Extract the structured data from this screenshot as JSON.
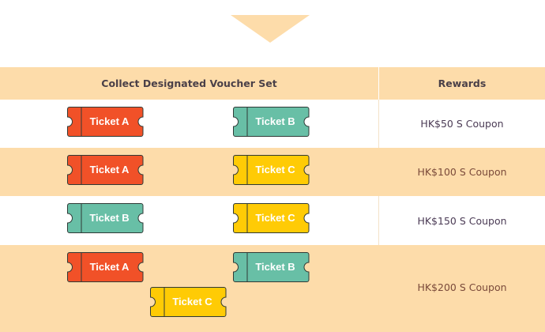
{
  "header": {
    "col_vouchers": "Collect Designated Voucher Set",
    "col_rewards": "Rewards"
  },
  "colors": {
    "ticket_a": "#F15128",
    "ticket_b": "#68BFA6",
    "ticket_c": "#FFCB05",
    "accent": "#FDDCAA"
  },
  "rows": [
    {
      "tickets": [
        "Ticket A",
        "Ticket B"
      ],
      "reward": "HK$50 S Coupon"
    },
    {
      "tickets": [
        "Ticket A",
        "Ticket C"
      ],
      "reward": "HK$100 S Coupon"
    },
    {
      "tickets": [
        "Ticket B",
        "Ticket C"
      ],
      "reward": "HK$150 S Coupon"
    },
    {
      "tickets": [
        "Ticket A",
        "Ticket B",
        "Ticket C"
      ],
      "reward": "HK$200 S Coupon"
    }
  ]
}
